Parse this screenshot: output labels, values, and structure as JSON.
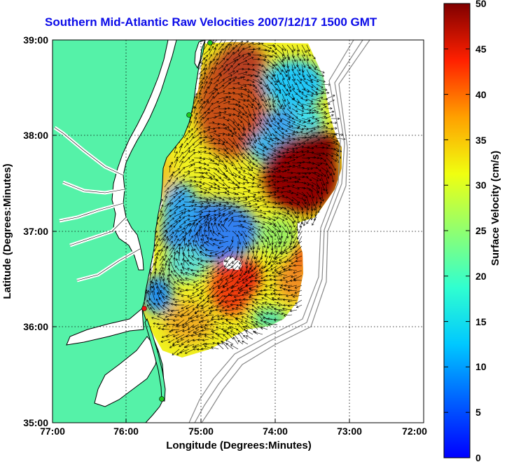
{
  "title": "Southern Mid-Atlantic Raw Velocities 2007/12/17 1500 GMT",
  "xaxis": {
    "label": "Longitude (Degrees:Minutes)",
    "ticks": [
      "77:00",
      "76:00",
      "75:00",
      "74:00",
      "73:00",
      "72:00"
    ]
  },
  "yaxis": {
    "label": "Latitude (Degrees:Minutes)",
    "ticks": [
      "39:00",
      "38:00",
      "37:00",
      "36:00",
      "35:00"
    ]
  },
  "colorbar": {
    "label": "Surface Velocity (cm/s)",
    "ticks": [
      "50",
      "45",
      "40",
      "35",
      "30",
      "25",
      "20",
      "15",
      "10",
      "5",
      "0"
    ],
    "min": 0,
    "max": 50
  },
  "colors": {
    "land": "#55f2a8",
    "water": "#ffffff",
    "coast": "#000000",
    "bathymetry": "#888888",
    "title": "#0a0ae8"
  }
}
